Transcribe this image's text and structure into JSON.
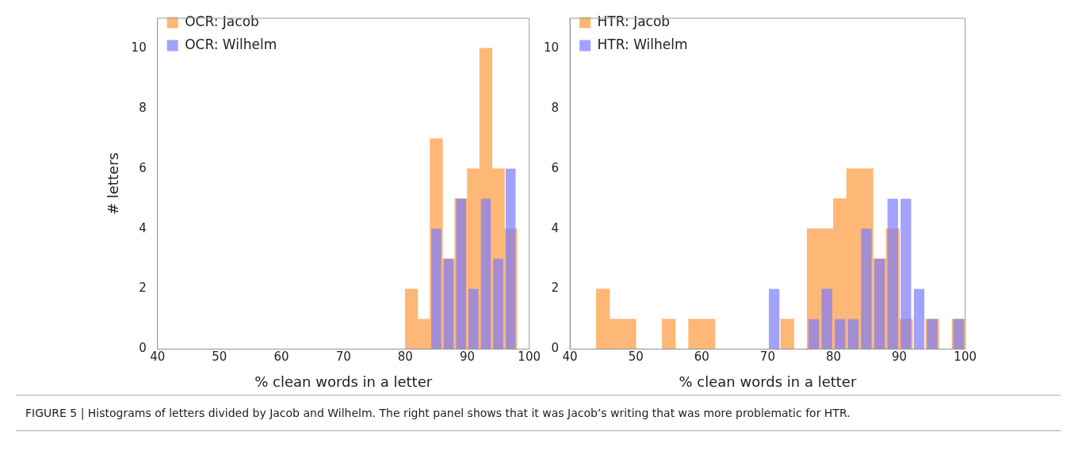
{
  "chart_data": [
    {
      "type": "histogram",
      "xlabel": "% clean words in a letter",
      "ylabel": "# letters",
      "bins": [
        40,
        42,
        44,
        46,
        48,
        50,
        52,
        54,
        56,
        58,
        60,
        62,
        64,
        66,
        68,
        70,
        72,
        74,
        76,
        78,
        80,
        82,
        84,
        86,
        88,
        90,
        92,
        94,
        96,
        98,
        100
      ],
      "series": [
        {
          "name": "OCR: Jacob",
          "color": "#fdb877",
          "values": [
            0,
            0,
            0,
            0,
            0,
            0,
            0,
            0,
            0,
            0,
            0,
            0,
            0,
            0,
            0,
            0,
            0,
            0,
            0,
            0,
            2,
            1,
            7,
            3,
            5,
            6,
            10,
            6,
            4,
            0
          ]
        },
        {
          "name": "OCR: Wilhelm",
          "color": "#7b7bfb",
          "values": [
            0,
            0,
            0,
            0,
            0,
            0,
            0,
            0,
            0,
            0,
            0,
            0,
            0,
            0,
            0,
            0,
            0,
            0,
            0,
            0,
            0,
            0,
            4,
            3,
            5,
            2,
            5,
            3,
            6,
            0
          ]
        }
      ],
      "xlim": [
        40,
        100
      ],
      "xticks": [
        40,
        50,
        60,
        70,
        80,
        90,
        100
      ],
      "ylim": [
        0,
        11
      ],
      "yticks": [
        0,
        2,
        4,
        6,
        8,
        10
      ],
      "legend": "top left",
      "grid": false
    },
    {
      "type": "histogram",
      "xlabel": "% clean words in a letter",
      "bins": [
        40,
        42,
        44,
        46,
        48,
        50,
        52,
        54,
        56,
        58,
        60,
        62,
        64,
        66,
        68,
        70,
        72,
        74,
        76,
        78,
        80,
        82,
        84,
        86,
        88,
        90,
        92,
        94,
        96,
        98,
        100
      ],
      "series": [
        {
          "name": "HTR: Jacob",
          "color": "#fdb877",
          "values": [
            0,
            0,
            2,
            1,
            1,
            0,
            0,
            1,
            0,
            1,
            1,
            0,
            0,
            0,
            0,
            0,
            1,
            0,
            4,
            4,
            5,
            6,
            6,
            3,
            4,
            1,
            0,
            1,
            0,
            1
          ]
        },
        {
          "name": "HTR: Wilhelm",
          "color": "#7b7bfb",
          "values": [
            0,
            0,
            0,
            0,
            0,
            0,
            0,
            0,
            0,
            0,
            0,
            0,
            0,
            0,
            0,
            2,
            0,
            0,
            1,
            2,
            1,
            1,
            4,
            3,
            5,
            5,
            2,
            1,
            0,
            1
          ]
        }
      ],
      "xlim": [
        40,
        100
      ],
      "xticks": [
        40,
        50,
        60,
        70,
        80,
        90,
        100
      ],
      "ylim": [
        0,
        11
      ],
      "yticks": [
        0,
        2,
        4,
        6,
        8,
        10
      ],
      "legend": "top left",
      "grid": false,
      "annotations": [
        "FIGURE 5 | Histograms of letters divided by Jacob and Wilhelm. The right panel shows that it was Jacob’s writing that was more problematic for HTR."
      ]
    }
  ]
}
